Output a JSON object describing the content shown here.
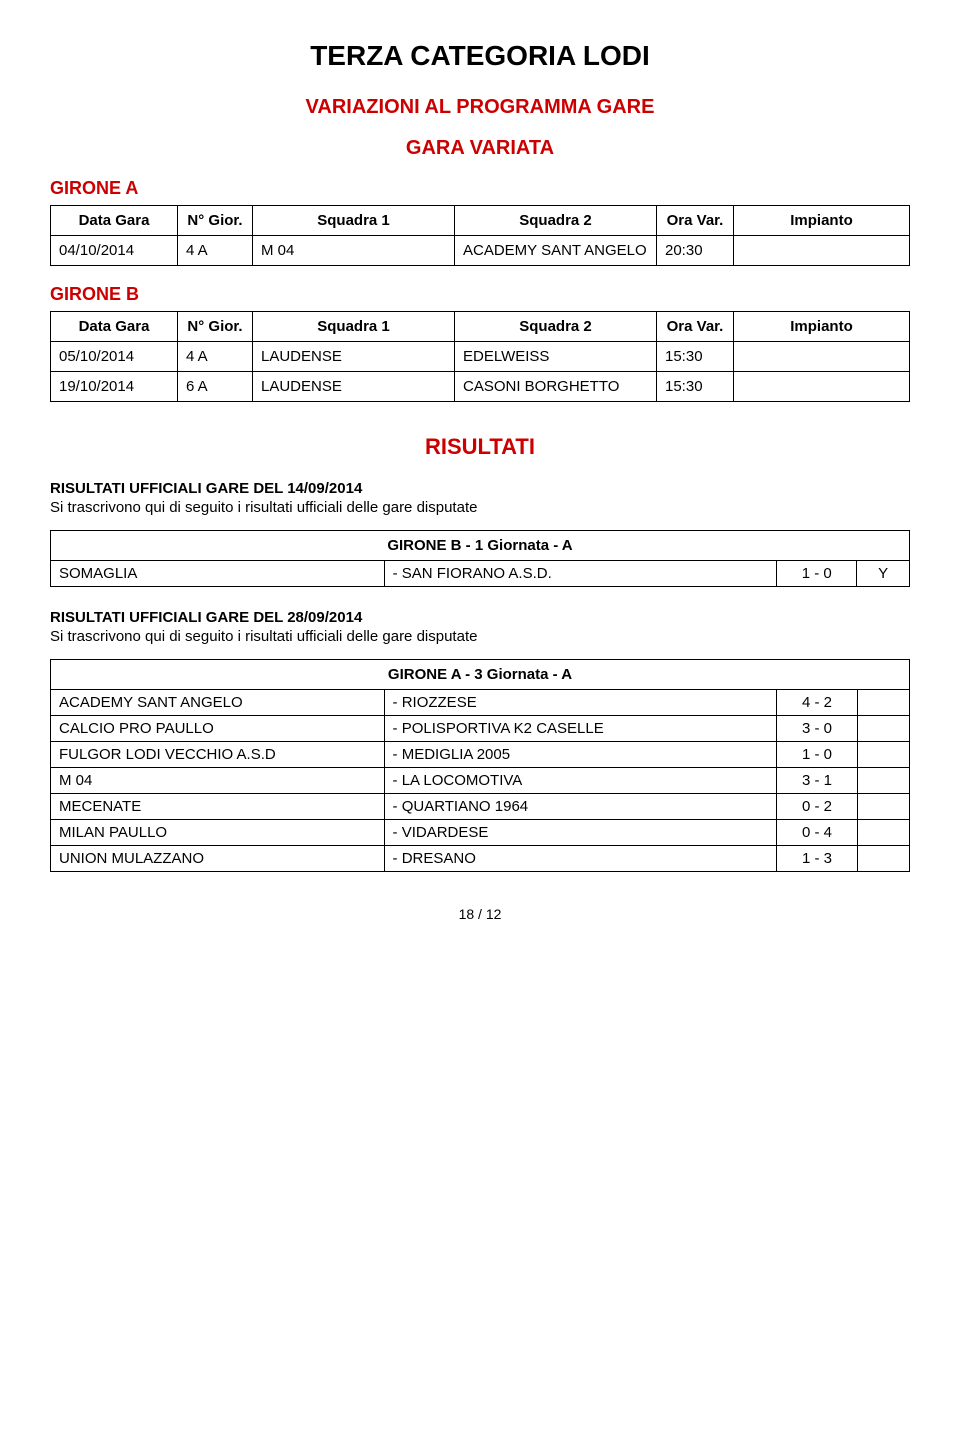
{
  "titles": {
    "main": "TERZA CATEGORIA LODI",
    "variazioni": "VARIAZIONI AL PROGRAMMA GARE",
    "gara_variata": "GARA VARIATA",
    "risultati": "RISULTATI"
  },
  "sched_headers": {
    "data": "Data Gara",
    "gior": "N° Gior.",
    "sq1": "Squadra 1",
    "sq2": "Squadra 2",
    "ora": "Ora Var.",
    "imp": "Impianto"
  },
  "girone_a": {
    "label": "GIRONE A",
    "rows": [
      {
        "data": "04/10/2014",
        "gior": "4 A",
        "sq1": "M 04",
        "sq2": "ACADEMY SANT ANGELO",
        "ora": "20:30",
        "imp": ""
      }
    ]
  },
  "girone_b": {
    "label": "GIRONE B",
    "rows": [
      {
        "data": "05/10/2014",
        "gior": "4 A",
        "sq1": "LAUDENSE",
        "sq2": "EDELWEISS",
        "ora": "15:30",
        "imp": ""
      },
      {
        "data": "19/10/2014",
        "gior": "6 A",
        "sq1": "LAUDENSE",
        "sq2": "CASONI BORGHETTO",
        "ora": "15:30",
        "imp": ""
      }
    ]
  },
  "results_block_1": {
    "heading": "RISULTATI UFFICIALI GARE DEL 14/09/2014",
    "note": "Si trascrivono qui di seguito i risultati ufficiali delle gare disputate",
    "table_title": "GIRONE B - 1 Giornata - A",
    "rows": [
      {
        "home": "SOMAGLIA",
        "away": "- SAN FIORANO A.S.D.",
        "score": "1 - 0",
        "flag": "Y"
      }
    ]
  },
  "results_block_2": {
    "heading": "RISULTATI UFFICIALI GARE DEL 28/09/2014",
    "note": "Si trascrivono qui di seguito i risultati ufficiali delle gare disputate",
    "table_title": "GIRONE A - 3 Giornata - A",
    "rows": [
      {
        "home": "ACADEMY SANT ANGELO",
        "away": "- RIOZZESE",
        "score": "4 - 2",
        "flag": ""
      },
      {
        "home": "CALCIO PRO PAULLO",
        "away": "- POLISPORTIVA K2 CASELLE",
        "score": "3 - 0",
        "flag": ""
      },
      {
        "home": "FULGOR LODI VECCHIO A.S.D",
        "away": "- MEDIGLIA 2005",
        "score": "1 - 0",
        "flag": ""
      },
      {
        "home": "M 04",
        "away": "- LA LOCOMOTIVA",
        "score": "3 - 1",
        "flag": ""
      },
      {
        "home": "MECENATE",
        "away": "- QUARTIANO 1964",
        "score": "0 - 2",
        "flag": ""
      },
      {
        "home": "MILAN PAULLO",
        "away": "- VIDARDESE",
        "score": "0 - 4",
        "flag": ""
      },
      {
        "home": "UNION MULAZZANO",
        "away": "- DRESANO",
        "score": "1 - 3",
        "flag": ""
      }
    ]
  },
  "pager": "18 / 12"
}
